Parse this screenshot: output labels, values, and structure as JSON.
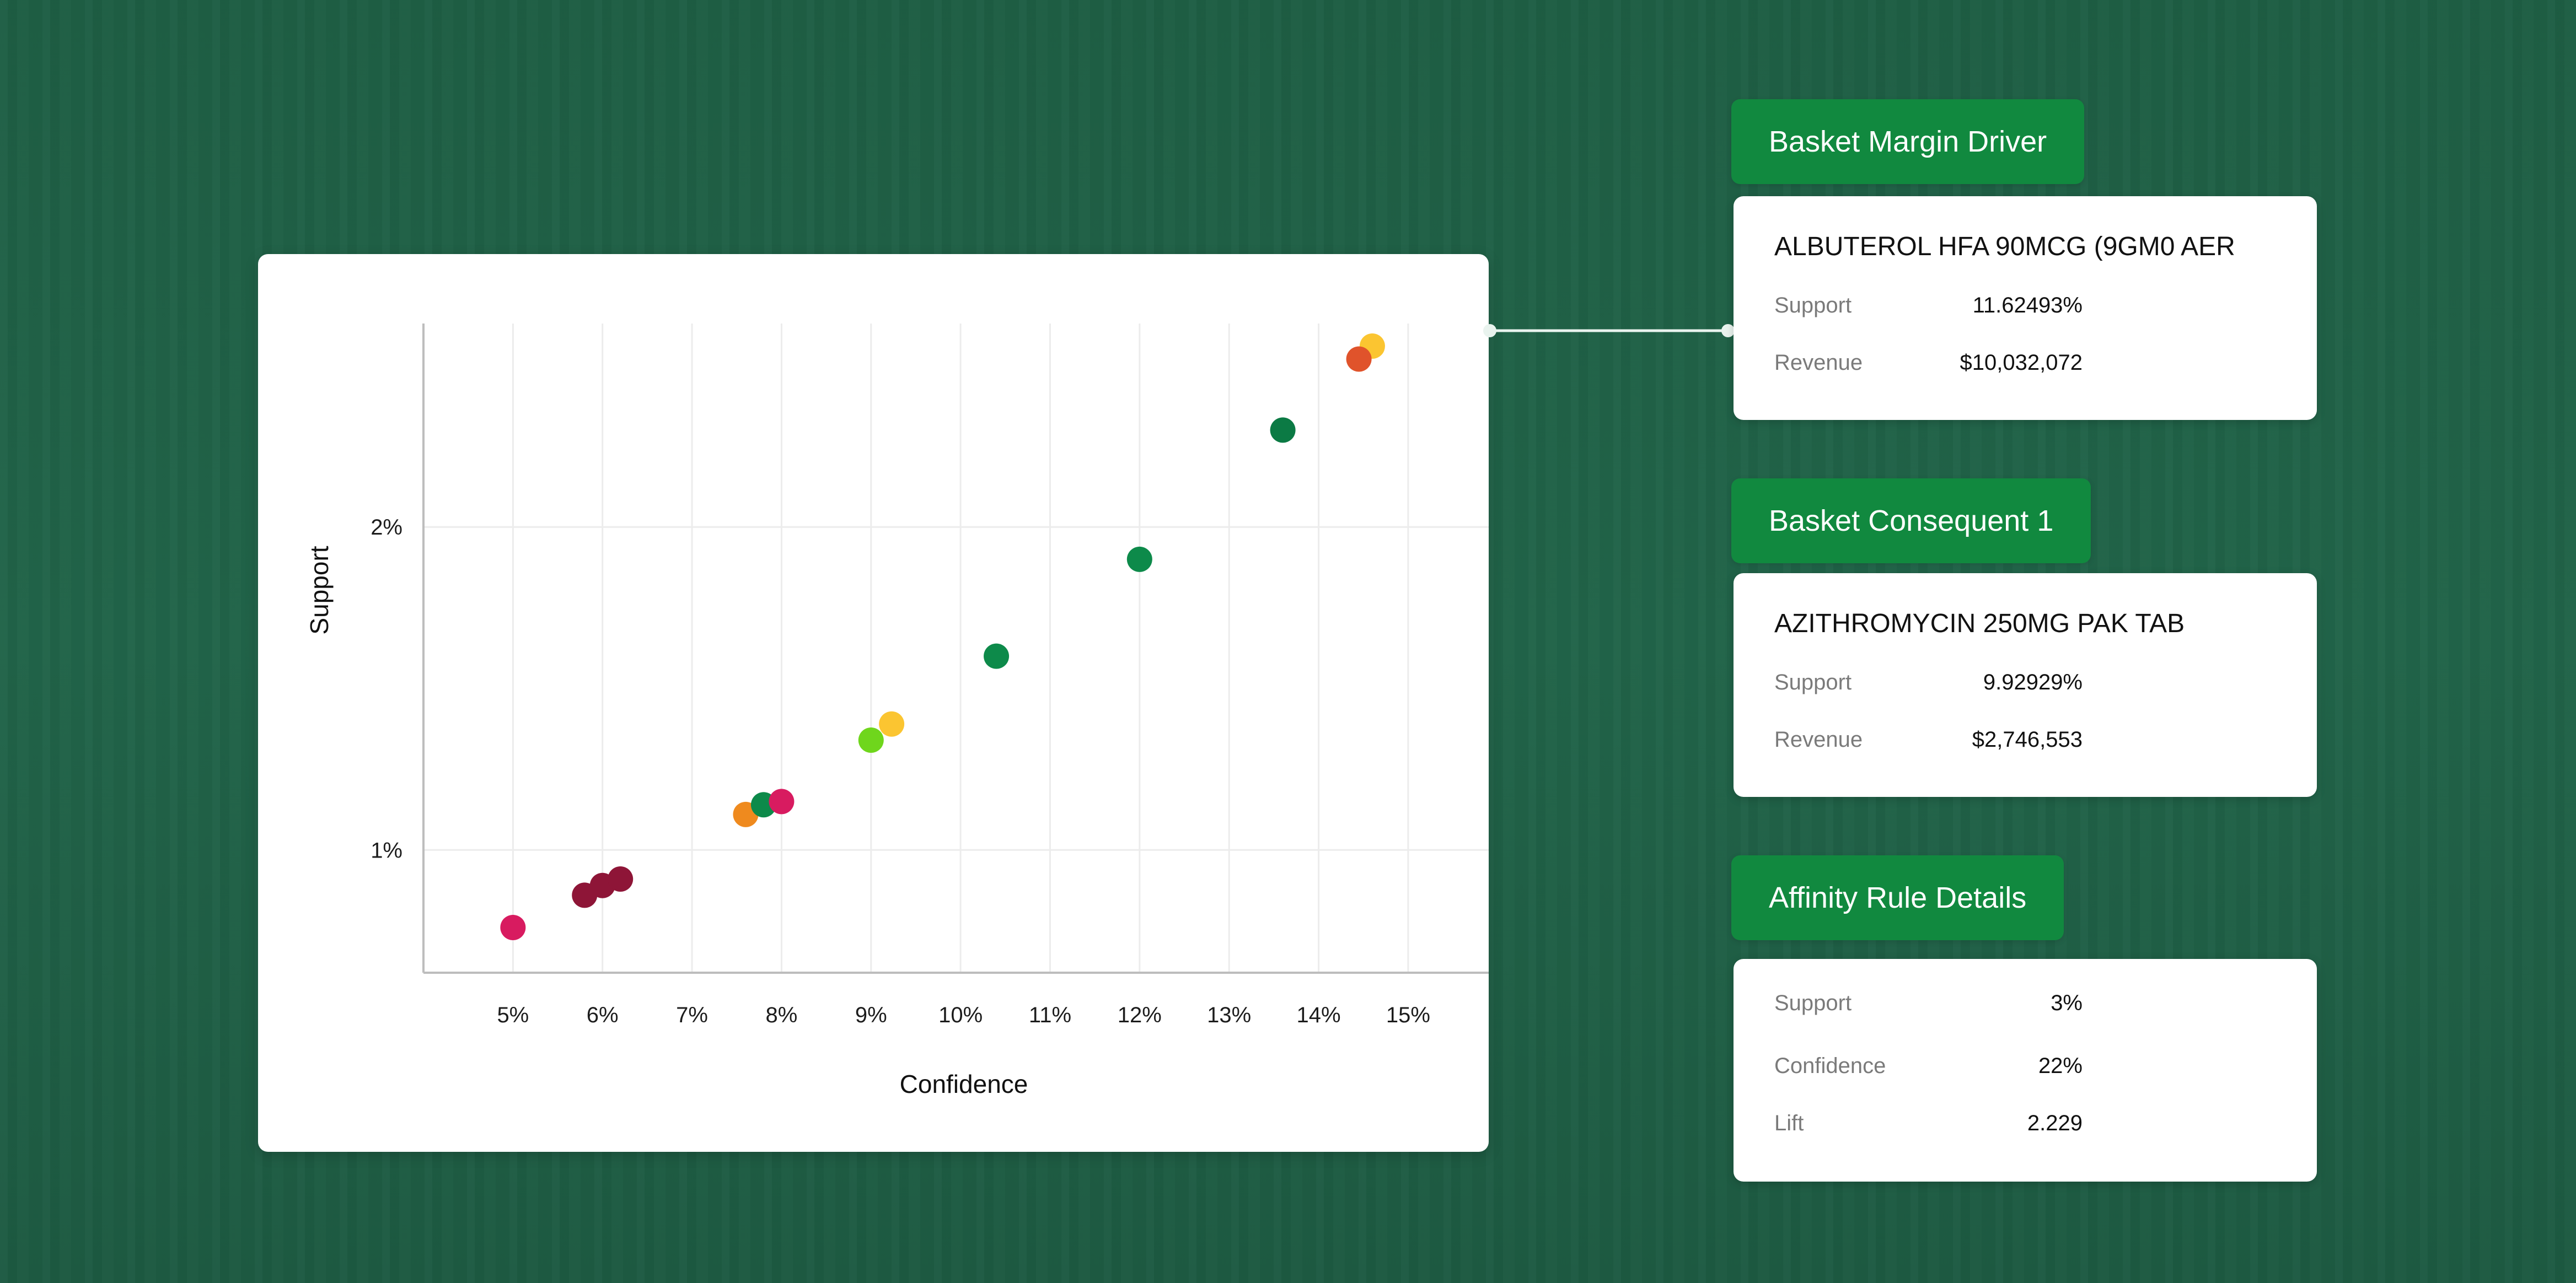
{
  "chart_data": {
    "type": "scatter",
    "xlabel": "Confidence",
    "ylabel": "Support",
    "x_ticks": [
      "5%",
      "6%",
      "7%",
      "8%",
      "9%",
      "10%",
      "11%",
      "12%",
      "13%",
      "14%",
      "15%"
    ],
    "y_ticks": [
      "1%",
      "2%"
    ],
    "xlim": [
      4,
      15.9
    ],
    "ylim": [
      0.62,
      2.63
    ],
    "grid": true,
    "points": [
      {
        "x": 5.0,
        "y": 0.76,
        "color": "#d81b60"
      },
      {
        "x": 5.8,
        "y": 0.86,
        "color": "#8e1537"
      },
      {
        "x": 6.0,
        "y": 0.89,
        "color": "#8e1537"
      },
      {
        "x": 6.2,
        "y": 0.91,
        "color": "#8e1537"
      },
      {
        "x": 7.6,
        "y": 1.11,
        "color": "#ef8a1e"
      },
      {
        "x": 7.8,
        "y": 1.14,
        "color": "#0d8a4a"
      },
      {
        "x": 8.0,
        "y": 1.15,
        "color": "#d81b60"
      },
      {
        "x": 9.0,
        "y": 1.34,
        "color": "#6fd61c"
      },
      {
        "x": 9.23,
        "y": 1.39,
        "color": "#fbc531"
      },
      {
        "x": 10.4,
        "y": 1.6,
        "color": "#0d8a4a"
      },
      {
        "x": 12.0,
        "y": 1.9,
        "color": "#0d8a4a"
      },
      {
        "x": 13.6,
        "y": 2.3,
        "color": "#0b7a44"
      },
      {
        "x": 14.6,
        "y": 2.56,
        "color": "#fbc531"
      },
      {
        "x": 14.45,
        "y": 2.52,
        "color": "#e0532b"
      }
    ]
  },
  "panels": {
    "driver": {
      "tag": "Basket Margin Driver",
      "title": "ALBUTEROL HFA 90MCG (9GM0 AER",
      "support_label": "Support",
      "support_value": "11.62493%",
      "revenue_label": "Revenue",
      "revenue_value": "$10,032,072"
    },
    "consequent": {
      "tag": "Basket Consequent 1",
      "title": "AZITHROMYCIN 250MG PAK TAB",
      "support_label": "Support",
      "support_value": "9.92929%",
      "revenue_label": "Revenue",
      "revenue_value": "$2,746,553"
    },
    "rule": {
      "tag": "Affinity Rule Details",
      "support_label": "Support",
      "support_value": "3%",
      "confidence_label": "Confidence",
      "confidence_value": "22%",
      "lift_label": "Lift",
      "lift_value": "2.229"
    }
  },
  "colors": {
    "background": "#1f6147",
    "tag": "#11893f",
    "card": "#ffffff"
  }
}
